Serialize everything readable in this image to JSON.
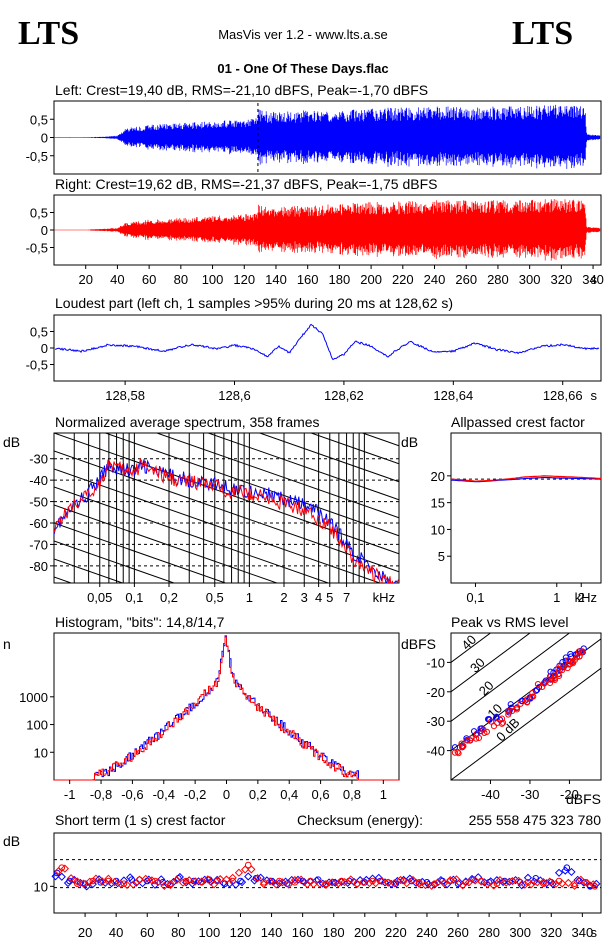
{
  "header": {
    "logo_left": "LTS",
    "logo_right": "LTS",
    "app_title": "MasVis ver 1.2 - www.lts.a.se",
    "file_title": "01 - One Of These Days.flac"
  },
  "colors": {
    "left": "#0000ff",
    "right": "#ff0000",
    "axis": "#000000"
  },
  "chart_data": [
    {
      "id": "left-waveform",
      "type": "line",
      "title": "Left: Crest=19,40 dB, RMS=-21,10 dBFS, Peak=-1,70 dBFS",
      "ytick_labels": [
        "0,5",
        "0",
        "-0,5"
      ],
      "yticks": [
        0.5,
        0,
        -0.5
      ],
      "ylim": [
        -1,
        1
      ],
      "xlim": [
        0,
        345
      ],
      "series": [
        {
          "color": "#0000ff",
          "x": [
            0,
            10,
            20,
            30,
            40,
            45,
            60,
            80,
            100,
            120,
            128,
            129,
            135,
            160,
            200,
            240,
            280,
            320,
            335,
            336,
            345
          ],
          "amplitude": [
            0.01,
            0.01,
            0.01,
            0.02,
            0.05,
            0.25,
            0.35,
            0.4,
            0.45,
            0.5,
            0.55,
            0.8,
            0.7,
            0.75,
            0.8,
            0.85,
            0.85,
            0.9,
            0.85,
            0.1,
            0.05
          ]
        }
      ]
    },
    {
      "id": "right-waveform",
      "type": "line",
      "title": "Right: Crest=19,62 dB, RMS=-21,37 dBFS, Peak=-1,75 dBFS",
      "ytick_labels": [
        "0,5",
        "0",
        "-0,5"
      ],
      "yticks": [
        0.5,
        0,
        -0.5
      ],
      "ylim": [
        -1,
        1
      ],
      "xlim": [
        0,
        345
      ],
      "xtick_labels": [
        "20",
        "40",
        "60",
        "80",
        "100",
        "120",
        "140",
        "160",
        "180",
        "200",
        "220",
        "240",
        "260",
        "280",
        "300",
        "320",
        "340",
        "s"
      ],
      "xticks": [
        20,
        40,
        60,
        80,
        100,
        120,
        140,
        160,
        180,
        200,
        220,
        240,
        260,
        280,
        300,
        320,
        340
      ],
      "series": [
        {
          "color": "#ff0000",
          "x": [
            0,
            10,
            20,
            30,
            40,
            45,
            60,
            80,
            100,
            120,
            128,
            129,
            135,
            160,
            200,
            240,
            280,
            320,
            335,
            336,
            345
          ],
          "amplitude": [
            0.01,
            0.01,
            0.01,
            0.03,
            0.06,
            0.2,
            0.3,
            0.35,
            0.4,
            0.45,
            0.5,
            0.8,
            0.65,
            0.7,
            0.8,
            0.85,
            0.85,
            0.9,
            0.85,
            0.1,
            0.05
          ]
        }
      ]
    },
    {
      "id": "loudest-part",
      "type": "line",
      "title": "Loudest part (left  ch, 1 samples >95% during 20 ms at 128,62 s)",
      "ytick_labels": [
        "0,5",
        "0",
        "-0,5"
      ],
      "yticks": [
        0.5,
        0,
        -0.5
      ],
      "ylim": [
        -1,
        1
      ],
      "xlim": [
        128.567,
        128.667
      ],
      "xtick_labels": [
        "128,58",
        "128,6",
        "128,62",
        "128,64",
        "128,66",
        "s"
      ],
      "xticks": [
        128.58,
        128.6,
        128.62,
        128.64,
        128.66
      ],
      "series": [
        {
          "color": "#0000ff",
          "x": [
            128.567,
            128.572,
            128.577,
            128.582,
            128.587,
            128.592,
            128.597,
            128.6,
            128.603,
            128.606,
            128.608,
            128.61,
            128.612,
            128.614,
            128.616,
            128.618,
            128.62,
            128.622,
            128.625,
            128.628,
            128.632,
            128.636,
            128.64,
            128.644,
            128.648,
            128.652,
            128.656,
            128.66,
            128.664,
            128.667
          ],
          "y": [
            0,
            -0.1,
            0.1,
            0.05,
            -0.1,
            0.1,
            -0.02,
            0.08,
            0.0,
            -0.25,
            0.05,
            -0.15,
            0.3,
            0.7,
            0.45,
            -0.35,
            -0.2,
            0.2,
            0.05,
            -0.25,
            0.2,
            -0.1,
            -0.1,
            0.15,
            -0.05,
            -0.15,
            0.05,
            0.1,
            -0.02,
            0.0
          ]
        }
      ]
    },
    {
      "id": "average-spectrum",
      "type": "line",
      "title": "Normalized average spectrum, 358 frames",
      "ylabel": "dB",
      "ytick_labels": [
        "-30",
        "-40",
        "-50",
        "-60",
        "-70",
        "-80"
      ],
      "yticks": [
        -30,
        -40,
        -50,
        -60,
        -70,
        -80
      ],
      "ylim": [
        -88,
        -18
      ],
      "xscale": "log",
      "xlim": [
        0.02,
        20
      ],
      "xtick_labels": [
        "0,05",
        "0,1",
        "0,2",
        "0,5",
        "1",
        "2",
        "3",
        "4",
        "5",
        "7",
        "kHz"
      ],
      "xticks": [
        0.05,
        0.1,
        0.2,
        0.5,
        1,
        2,
        3,
        4,
        5,
        7
      ],
      "series": [
        {
          "color": "#0000ff",
          "x": [
            0.02,
            0.03,
            0.04,
            0.05,
            0.06,
            0.08,
            0.1,
            0.12,
            0.15,
            0.2,
            0.3,
            0.5,
            0.7,
            1,
            1.5,
            2,
            3,
            4,
            5,
            6,
            7,
            8,
            10,
            12,
            15,
            20
          ],
          "y": [
            -62,
            -52,
            -46,
            -40,
            -33,
            -35,
            -36,
            -33,
            -36,
            -38,
            -40,
            -42,
            -44,
            -45,
            -47,
            -49,
            -52,
            -55,
            -60,
            -65,
            -70,
            -74,
            -78,
            -82,
            -86,
            -90
          ]
        },
        {
          "color": "#ff0000",
          "x": [
            0.02,
            0.03,
            0.04,
            0.05,
            0.06,
            0.08,
            0.1,
            0.12,
            0.15,
            0.2,
            0.3,
            0.5,
            0.7,
            1,
            1.5,
            2,
            3,
            4,
            5,
            6,
            7,
            8,
            10,
            12,
            15,
            20
          ],
          "y": [
            -61,
            -51,
            -47,
            -41,
            -32,
            -36,
            -37,
            -31,
            -37,
            -39,
            -41,
            -43,
            -45,
            -46,
            -49,
            -51,
            -54,
            -58,
            -62,
            -67,
            -72,
            -77,
            -80,
            -84,
            -87,
            -90
          ]
        }
      ]
    },
    {
      "id": "allpassed-crest",
      "type": "line",
      "title": "Allpassed crest factor",
      "ylabel": "dB",
      "ytick_labels": [
        "20",
        "15",
        "10",
        "5"
      ],
      "yticks": [
        20,
        15,
        10,
        5
      ],
      "ylim": [
        0,
        28
      ],
      "xscale": "log",
      "xlim": [
        0.05,
        3.5
      ],
      "xtick_labels": [
        "0,1",
        "1",
        "2",
        "kHz"
      ],
      "xticks": [
        0.1,
        1,
        2
      ],
      "reference": 19.4,
      "series": [
        {
          "color": "#0000ff",
          "x": [
            0.05,
            0.1,
            0.2,
            0.4,
            0.7,
            1,
            2,
            3.5
          ],
          "y": [
            19.2,
            18.9,
            19.2,
            19.5,
            19.7,
            19.6,
            19.5,
            19.4
          ]
        },
        {
          "color": "#ff0000",
          "x": [
            0.05,
            0.1,
            0.2,
            0.4,
            0.7,
            1,
            2,
            3.5
          ],
          "y": [
            19.4,
            19.0,
            19.3,
            19.8,
            20.0,
            19.9,
            19.7,
            19.5
          ]
        }
      ]
    },
    {
      "id": "histogram",
      "type": "histogram",
      "title": "Histogram, \"bits\": 14,8/14,7",
      "ylabel": "n",
      "yscale": "log",
      "ytick_labels": [
        "1000",
        "100",
        "10"
      ],
      "yticks": [
        1000,
        100,
        10
      ],
      "ylim": [
        1,
        200000
      ],
      "xlim": [
        -1.1,
        1.1
      ],
      "xtick_labels": [
        "-1",
        "-0,8",
        "-0,6",
        "-0,4",
        "-0,2",
        "0",
        "0,2",
        "0,4",
        "0,6",
        "0,8",
        "1"
      ],
      "xticks": [
        -1,
        -0.8,
        -0.6,
        -0.4,
        -0.2,
        0,
        0.2,
        0.4,
        0.6,
        0.8,
        1
      ],
      "series": [
        {
          "color": "#0000ff",
          "x": [
            -0.85,
            -0.75,
            -0.6,
            -0.4,
            -0.2,
            -0.05,
            0,
            0.05,
            0.2,
            0.4,
            0.6,
            0.75,
            0.85
          ],
          "y": [
            1.5,
            2,
            8,
            60,
            500,
            4000,
            120000,
            4000,
            500,
            60,
            8,
            2,
            1.5
          ]
        },
        {
          "color": "#ff0000",
          "x": [
            -0.85,
            -0.75,
            -0.6,
            -0.4,
            -0.2,
            -0.05,
            0,
            0.05,
            0.2,
            0.4,
            0.6,
            0.75,
            0.85
          ],
          "y": [
            1.4,
            2,
            7,
            55,
            480,
            3800,
            110000,
            3800,
            480,
            55,
            7,
            2,
            1.4
          ]
        }
      ]
    },
    {
      "id": "peak-vs-rms",
      "type": "scatter",
      "title": "Peak vs RMS level",
      "ylabel": "dBFS",
      "xlabel": "dBFS",
      "ytick_labels": [
        "-10",
        "-20",
        "-30",
        "-40"
      ],
      "yticks": [
        -10,
        -20,
        -30,
        -40
      ],
      "ylim": [
        -50,
        0
      ],
      "xlim": [
        -50,
        -12
      ],
      "xtick_labels": [
        "-40",
        "-30",
        "-20"
      ],
      "xticks": [
        -40,
        -30,
        -20
      ],
      "diagonal_labels": [
        "40",
        "30",
        "20",
        "10",
        "0 dB"
      ],
      "diagonal_offsets": [
        40,
        30,
        20,
        10,
        0
      ],
      "series": [
        {
          "color": "#0000ff",
          "x": [
            -48,
            -46,
            -44,
            -42,
            -40,
            -38,
            -36,
            -34,
            -32,
            -30,
            -28,
            -26,
            -25,
            -24,
            -23,
            -22,
            -21,
            -20,
            -19,
            -18,
            -17
          ],
          "y": [
            -38,
            -36,
            -34,
            -33,
            -30,
            -29,
            -27,
            -25,
            -23,
            -22,
            -19,
            -17,
            -15,
            -14,
            -13,
            -11,
            -10,
            -9,
            -8,
            -7,
            -6
          ]
        },
        {
          "color": "#ff0000",
          "x": [
            -48,
            -47,
            -45,
            -43,
            -41,
            -39,
            -37,
            -35,
            -33,
            -31,
            -29,
            -27,
            -25,
            -24,
            -23,
            -22,
            -21,
            -20,
            -19,
            -18,
            -17
          ],
          "y": [
            -40,
            -38,
            -36,
            -35,
            -33,
            -31,
            -30,
            -27,
            -25,
            -23,
            -21,
            -18,
            -16,
            -15,
            -14,
            -12,
            -11,
            -10,
            -9,
            -8,
            -7
          ]
        }
      ]
    },
    {
      "id": "short-term-crest",
      "type": "scatter",
      "title": "Short term (1 s) crest factor",
      "checksum_label": "Checksum (energy):",
      "checksum_value": "255 558 475 323 780",
      "ylabel": "dB",
      "ytick_labels": [
        "10"
      ],
      "yticks": [
        10
      ],
      "ylim": [
        0,
        30
      ],
      "xlim": [
        0,
        352
      ],
      "reference_lines": [
        20,
        9.5
      ],
      "xtick_labels": [
        "20",
        "40",
        "60",
        "80",
        "100",
        "120",
        "140",
        "160",
        "180",
        "200",
        "220",
        "240",
        "260",
        "280",
        "300",
        "320",
        "340",
        "s"
      ],
      "xticks": [
        20,
        40,
        60,
        80,
        100,
        120,
        140,
        160,
        180,
        200,
        220,
        240,
        260,
        280,
        300,
        320,
        340
      ],
      "series": [
        {
          "color": "#0000ff",
          "x": [
            2,
            10,
            20,
            30,
            40,
            50,
            60,
            70,
            80,
            90,
            100,
            110,
            120,
            130,
            140,
            150,
            160,
            170,
            180,
            190,
            200,
            210,
            220,
            230,
            240,
            250,
            260,
            270,
            280,
            290,
            300,
            310,
            320,
            330,
            338,
            345
          ],
          "y": [
            15,
            12,
            11,
            11.5,
            12,
            12.5,
            12,
            11.5,
            13,
            12,
            12.5,
            11,
            12,
            13,
            12,
            11,
            12,
            12.5,
            11.5,
            12,
            11.5,
            12,
            11,
            12,
            11.5,
            12,
            11,
            12.5,
            11.5,
            12,
            11.5,
            13,
            11.5,
            17,
            12,
            10
          ]
        },
        {
          "color": "#ff0000",
          "x": [
            5,
            15,
            25,
            35,
            45,
            55,
            65,
            75,
            85,
            95,
            105,
            115,
            125,
            135,
            145,
            155,
            165,
            175,
            185,
            195,
            205,
            215,
            225,
            235,
            245,
            255,
            265,
            275,
            285,
            295,
            305,
            315,
            325,
            335,
            342,
            348
          ],
          "y": [
            17,
            11,
            12,
            12,
            11,
            12.5,
            12,
            11,
            12,
            11.5,
            12,
            12,
            18,
            11.5,
            12,
            11.5,
            12,
            11,
            12,
            11,
            12,
            11.5,
            12,
            11.5,
            11,
            12,
            11.5,
            12,
            11,
            12,
            11.5,
            11,
            12,
            11,
            11.5,
            10
          ]
        }
      ]
    }
  ]
}
